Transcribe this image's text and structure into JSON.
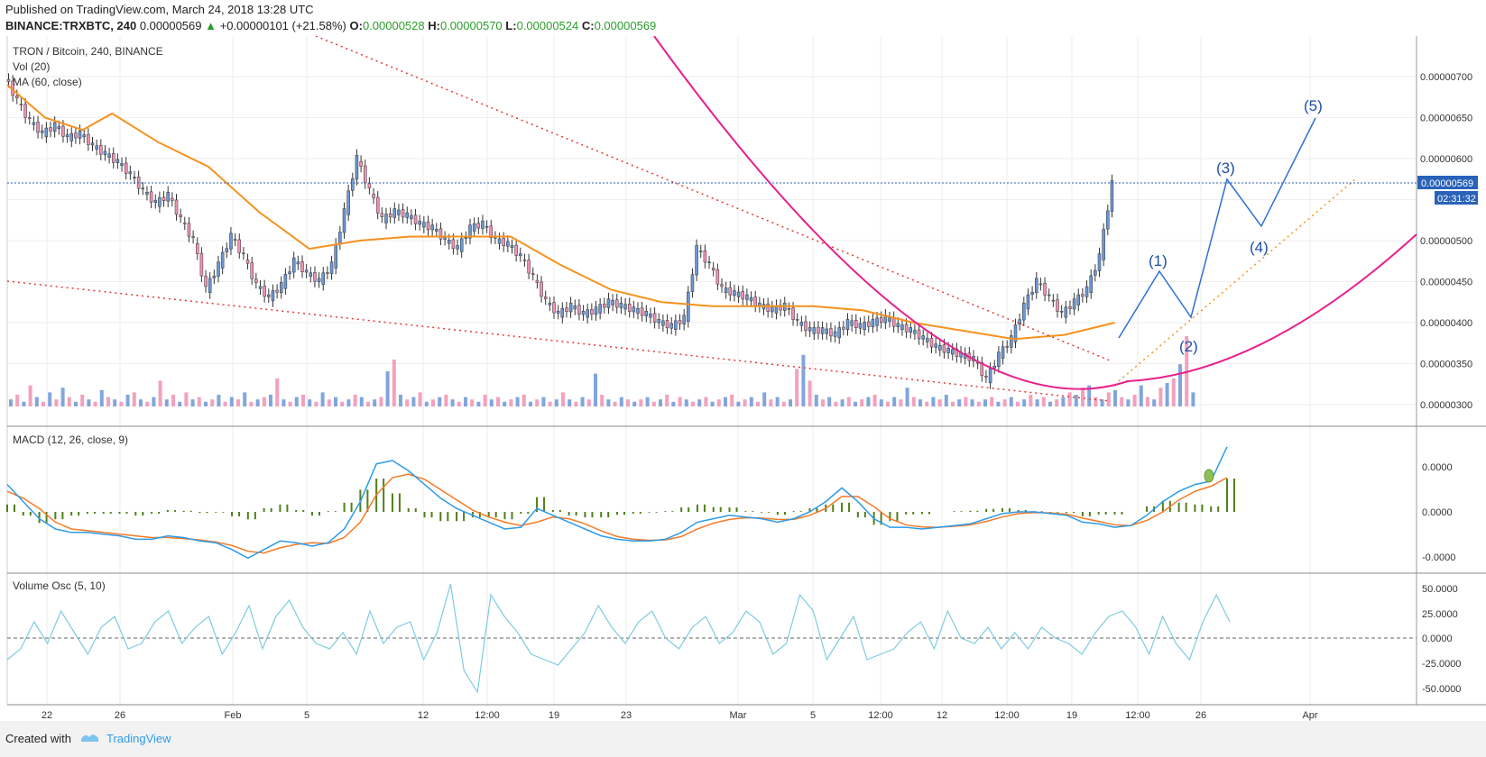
{
  "header": {
    "published": "Published on TradingView.com, March 24, 2018 13:28 UTC",
    "symbol": "BINANCE:TRXBTC, 240",
    "last": "0.00000569",
    "change": "+0.00000101 (+21.58%)",
    "open_label": "O:",
    "open": "0.00000528",
    "high_label": "H:",
    "high": "0.00000570",
    "low_label": "L:",
    "low": "0.00000524",
    "close_label": "C:",
    "close": "0.00000569"
  },
  "panes": {
    "price_title": "TRON / Bitcoin, 240, BINANCE",
    "vol_title": "Vol (20)",
    "ma_title": "MA (60, close)",
    "macd_title": "MACD (12, 26, close, 9)",
    "vosc_title": "Volume Osc (5, 10)"
  },
  "price_badge": "0.00000569",
  "countdown_badge": "02:31:32",
  "footer": {
    "created_with": "Created with",
    "brand": "TradingView"
  },
  "colors": {
    "up": "#6b97d6",
    "down": "#f291b3",
    "ma": "#f5921e",
    "macd": "#2d9be8",
    "signal": "#f47a27",
    "hist": "#4f7f1a",
    "vosc": "#7fcbe0",
    "trend": "#e53935",
    "arc": "#e91e8c",
    "wave": "#2f6fd4"
  },
  "chart_data": [
    {
      "type": "candlestick",
      "title": "TRON / Bitcoin, 240, BINANCE",
      "x_ticks": [
        "22",
        "26",
        "Feb",
        "5",
        "12",
        "12:00",
        "19",
        "23",
        "Mar",
        "5",
        "12:00",
        "12",
        "12:00",
        "19",
        "12:00",
        "26",
        "Apr"
      ],
      "y_ticks": [
        "0.00000700",
        "0.00000650",
        "0.00000600",
        "0.00000550",
        "0.00000500",
        "0.00000450",
        "0.00000400",
        "0.00000350",
        "0.00000300"
      ],
      "ylim": [
        2.95e-06,
        7.45e-06
      ],
      "close_series": [
        {
          "t": 0,
          "v": 7e-06
        },
        {
          "t": 3,
          "v": 6.7e-06
        },
        {
          "t": 6,
          "v": 6.45e-06
        },
        {
          "t": 9,
          "v": 6.3e-06
        },
        {
          "t": 12,
          "v": 6.4e-06
        },
        {
          "t": 15,
          "v": 6.25e-06
        },
        {
          "t": 18,
          "v": 6.3e-06
        },
        {
          "t": 21,
          "v": 6.15e-06
        },
        {
          "t": 24,
          "v": 6.05e-06
        },
        {
          "t": 27,
          "v": 5.95e-06
        },
        {
          "t": 30,
          "v": 5.8e-06
        },
        {
          "t": 33,
          "v": 5.6e-06
        },
        {
          "t": 36,
          "v": 5.45e-06
        },
        {
          "t": 39,
          "v": 5.55e-06
        },
        {
          "t": 42,
          "v": 5.25e-06
        },
        {
          "t": 45,
          "v": 5e-06
        },
        {
          "t": 48,
          "v": 4.4e-06
        },
        {
          "t": 51,
          "v": 4.7e-06
        },
        {
          "t": 54,
          "v": 5.05e-06
        },
        {
          "t": 57,
          "v": 4.8e-06
        },
        {
          "t": 60,
          "v": 4.45e-06
        },
        {
          "t": 63,
          "v": 4.3e-06
        },
        {
          "t": 66,
          "v": 4.45e-06
        },
        {
          "t": 69,
          "v": 4.75e-06
        },
        {
          "t": 72,
          "v": 4.6e-06
        },
        {
          "t": 75,
          "v": 4.5e-06
        },
        {
          "t": 78,
          "v": 4.7e-06
        },
        {
          "t": 81,
          "v": 5.35e-06
        },
        {
          "t": 84,
          "v": 6e-06
        },
        {
          "t": 87,
          "v": 5.6e-06
        },
        {
          "t": 90,
          "v": 5.25e-06
        },
        {
          "t": 93,
          "v": 5.35e-06
        },
        {
          "t": 96,
          "v": 5.3e-06
        },
        {
          "t": 99,
          "v": 5.2e-06
        },
        {
          "t": 102,
          "v": 5.15e-06
        },
        {
          "t": 105,
          "v": 5e-06
        },
        {
          "t": 108,
          "v": 4.9e-06
        },
        {
          "t": 111,
          "v": 5.15e-06
        },
        {
          "t": 114,
          "v": 5.2e-06
        },
        {
          "t": 117,
          "v": 5e-06
        },
        {
          "t": 120,
          "v": 4.95e-06
        },
        {
          "t": 123,
          "v": 4.8e-06
        },
        {
          "t": 126,
          "v": 4.55e-06
        },
        {
          "t": 129,
          "v": 4.25e-06
        },
        {
          "t": 132,
          "v": 4.1e-06
        },
        {
          "t": 135,
          "v": 4.2e-06
        },
        {
          "t": 138,
          "v": 4.1e-06
        },
        {
          "t": 141,
          "v": 4.15e-06
        },
        {
          "t": 144,
          "v": 4.25e-06
        },
        {
          "t": 147,
          "v": 4.2e-06
        },
        {
          "t": 150,
          "v": 4.15e-06
        },
        {
          "t": 153,
          "v": 4.1e-06
        },
        {
          "t": 156,
          "v": 4e-06
        },
        {
          "t": 159,
          "v": 3.95e-06
        },
        {
          "t": 162,
          "v": 4.05e-06
        },
        {
          "t": 165,
          "v": 4.9e-06
        },
        {
          "t": 168,
          "v": 4.7e-06
        },
        {
          "t": 171,
          "v": 4.4e-06
        },
        {
          "t": 174,
          "v": 4.35e-06
        },
        {
          "t": 177,
          "v": 4.3e-06
        },
        {
          "t": 180,
          "v": 4.2e-06
        },
        {
          "t": 183,
          "v": 4.15e-06
        },
        {
          "t": 186,
          "v": 4.2e-06
        },
        {
          "t": 189,
          "v": 4e-06
        },
        {
          "t": 192,
          "v": 3.9e-06
        },
        {
          "t": 195,
          "v": 3.9e-06
        },
        {
          "t": 198,
          "v": 3.85e-06
        },
        {
          "t": 201,
          "v": 4e-06
        },
        {
          "t": 204,
          "v": 3.95e-06
        },
        {
          "t": 207,
          "v": 4e-06
        },
        {
          "t": 210,
          "v": 4.05e-06
        },
        {
          "t": 213,
          "v": 3.95e-06
        },
        {
          "t": 216,
          "v": 3.9e-06
        },
        {
          "t": 219,
          "v": 3.8e-06
        },
        {
          "t": 222,
          "v": 3.7e-06
        },
        {
          "t": 225,
          "v": 3.65e-06
        },
        {
          "t": 228,
          "v": 3.6e-06
        },
        {
          "t": 231,
          "v": 3.55e-06
        },
        {
          "t": 234,
          "v": 3.3e-06
        },
        {
          "t": 237,
          "v": 3.6e-06
        },
        {
          "t": 240,
          "v": 3.8e-06
        },
        {
          "t": 243,
          "v": 4.2e-06
        },
        {
          "t": 246,
          "v": 4.5e-06
        },
        {
          "t": 249,
          "v": 4.3e-06
        },
        {
          "t": 252,
          "v": 4.1e-06
        },
        {
          "t": 255,
          "v": 4.25e-06
        },
        {
          "t": 258,
          "v": 4.4e-06
        },
        {
          "t": 261,
          "v": 4.8e-06
        },
        {
          "t": 264,
          "v": 5.69e-06
        }
      ],
      "ma60": [
        {
          "t": 0,
          "v": 6.9e-06
        },
        {
          "t": 9,
          "v": 6.5e-06
        },
        {
          "t": 18,
          "v": 6.35e-06
        },
        {
          "t": 25,
          "v": 6.55e-06
        },
        {
          "t": 36,
          "v": 6.2e-06
        },
        {
          "t": 48,
          "v": 5.9e-06
        },
        {
          "t": 60,
          "v": 5.35e-06
        },
        {
          "t": 72,
          "v": 4.9e-06
        },
        {
          "t": 84,
          "v": 5e-06
        },
        {
          "t": 96,
          "v": 5.05e-06
        },
        {
          "t": 108,
          "v": 5.05e-06
        },
        {
          "t": 120,
          "v": 5.05e-06
        },
        {
          "t": 132,
          "v": 4.7e-06
        },
        {
          "t": 144,
          "v": 4.4e-06
        },
        {
          "t": 156,
          "v": 4.25e-06
        },
        {
          "t": 168,
          "v": 4.2e-06
        },
        {
          "t": 180,
          "v": 4.2e-06
        },
        {
          "t": 192,
          "v": 4.2e-06
        },
        {
          "t": 204,
          "v": 4.15e-06
        },
        {
          "t": 216,
          "v": 4e-06
        },
        {
          "t": 228,
          "v": 3.9e-06
        },
        {
          "t": 240,
          "v": 3.8e-06
        },
        {
          "t": 252,
          "v": 3.85e-06
        },
        {
          "t": 264,
          "v": 4e-06
        }
      ],
      "volume": [
        3,
        5,
        2,
        9,
        4,
        2,
        6,
        3,
        8,
        4,
        2,
        5,
        3,
        2,
        7,
        4,
        3,
        2,
        5,
        6,
        3,
        2,
        4,
        11,
        3,
        5,
        2,
        6,
        3,
        4,
        2,
        3,
        5,
        2,
        4,
        3,
        6,
        2,
        3,
        4,
        5,
        12,
        3,
        2,
        4,
        5,
        3,
        2,
        6,
        3,
        4,
        2,
        3,
        5,
        4,
        2,
        3,
        4,
        15,
        20,
        5,
        3,
        4,
        6,
        2,
        3,
        4,
        5,
        3,
        2,
        4,
        3,
        2,
        5,
        3,
        4,
        2,
        3,
        4,
        5,
        2,
        3,
        4,
        2,
        3,
        6,
        3,
        2,
        4,
        3,
        14,
        5,
        3,
        2,
        4,
        3,
        2,
        3,
        4,
        2,
        3,
        5,
        2,
        4,
        3,
        2,
        3,
        4,
        2,
        3,
        4,
        5,
        2,
        3,
        4,
        2,
        6,
        3,
        4,
        2,
        3,
        16,
        22,
        11,
        5,
        3,
        4,
        2,
        3,
        4,
        2,
        3,
        4,
        5,
        3,
        2,
        4,
        3,
        8,
        4,
        3,
        2,
        4,
        3,
        5,
        2,
        3,
        4,
        3,
        2,
        3,
        4,
        2,
        3,
        4,
        2,
        3,
        5,
        3,
        4,
        2,
        3,
        4,
        6,
        5,
        8,
        9,
        4,
        3,
        6,
        7,
        4,
        3,
        5,
        9,
        4,
        3,
        8,
        10,
        12,
        18,
        30,
        6
      ],
      "annotations": [
        "(1)",
        "(2)",
        "(3)",
        "(4)",
        "(5)"
      ]
    },
    {
      "type": "line",
      "title": "MACD (12, 26, close, 9)",
      "y_ticks": [
        "0.0000",
        "0.0000",
        "-0.0000"
      ],
      "series": [
        {
          "name": "MACD",
          "values": [
            0.8,
            0.3,
            -0.2,
            -0.5,
            -0.6,
            -0.6,
            -0.65,
            -0.7,
            -0.8,
            -0.8,
            -0.7,
            -0.75,
            -0.85,
            -0.9,
            -1.1,
            -1.35,
            -1.1,
            -0.85,
            -0.9,
            -1.0,
            -0.9,
            -0.5,
            0.3,
            1.4,
            1.5,
            1.2,
            0.8,
            0.4,
            0.1,
            -0.1,
            -0.3,
            -0.5,
            -0.45,
            0.1,
            -0.1,
            -0.3,
            -0.5,
            -0.7,
            -0.8,
            -0.85,
            -0.85,
            -0.8,
            -0.6,
            -0.3,
            -0.2,
            -0.1,
            -0.15,
            -0.2,
            -0.3,
            -0.2,
            0.0,
            0.3,
            0.7,
            0.3,
            -0.2,
            -0.45,
            -0.45,
            -0.5,
            -0.45,
            -0.4,
            -0.35,
            -0.2,
            -0.05,
            0.0,
            0.0,
            -0.05,
            -0.1,
            -0.3,
            -0.35,
            -0.45,
            -0.4,
            -0.1,
            0.3,
            0.6,
            0.8,
            0.9,
            1.9
          ]
        },
        {
          "name": "Signal",
          "values": [
            0.6,
            0.4,
            0.1,
            -0.3,
            -0.5,
            -0.55,
            -0.6,
            -0.65,
            -0.7,
            -0.75,
            -0.75,
            -0.78,
            -0.82,
            -0.88,
            -0.98,
            -1.15,
            -1.2,
            -1.05,
            -0.95,
            -0.9,
            -0.92,
            -0.75,
            -0.3,
            0.5,
            1.0,
            1.1,
            0.95,
            0.65,
            0.35,
            0.05,
            -0.15,
            -0.3,
            -0.4,
            -0.3,
            -0.15,
            -0.2,
            -0.35,
            -0.55,
            -0.72,
            -0.8,
            -0.83,
            -0.82,
            -0.72,
            -0.5,
            -0.33,
            -0.22,
            -0.17,
            -0.18,
            -0.22,
            -0.22,
            -0.1,
            0.1,
            0.45,
            0.45,
            0.15,
            -0.2,
            -0.38,
            -0.44,
            -0.45,
            -0.42,
            -0.38,
            -0.28,
            -0.15,
            -0.05,
            -0.02,
            -0.03,
            -0.07,
            -0.18,
            -0.28,
            -0.38,
            -0.4,
            -0.25,
            0.0,
            0.35,
            0.6,
            0.75,
            1.0
          ]
        }
      ]
    },
    {
      "type": "line",
      "title": "Volume Osc (5, 10)",
      "y_ticks": [
        "50.0000",
        "25.0000",
        "0.0000",
        "-25.0000",
        "-50.0000"
      ],
      "series": [
        {
          "name": "Volume Osc",
          "values": [
            -20,
            -10,
            15,
            -5,
            25,
            5,
            -15,
            10,
            20,
            -10,
            -5,
            15,
            25,
            -5,
            10,
            20,
            -15,
            5,
            30,
            -10,
            20,
            35,
            10,
            -5,
            -10,
            5,
            -15,
            25,
            -5,
            10,
            15,
            -20,
            5,
            50,
            -30,
            -50,
            40,
            20,
            5,
            -15,
            -20,
            -25,
            -10,
            5,
            30,
            10,
            -5,
            15,
            25,
            0,
            -10,
            10,
            20,
            -5,
            5,
            25,
            15,
            -15,
            -5,
            40,
            25,
            -20,
            0,
            20,
            -20,
            -15,
            -10,
            5,
            15,
            -10,
            25,
            0,
            -5,
            10,
            -10,
            5,
            -10,
            10,
            0,
            -5,
            -15,
            5,
            20,
            25,
            10,
            -15,
            20,
            -5,
            -20,
            15,
            40,
            15
          ]
        }
      ]
    }
  ]
}
